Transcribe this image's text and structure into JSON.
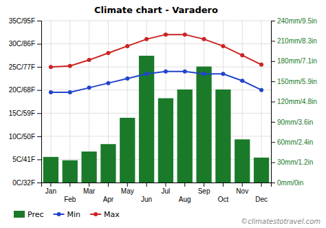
{
  "chart_data": {
    "type": "bar",
    "title": "Climate chart - Varadero",
    "categories": [
      "Jan",
      "Feb",
      "Mar",
      "Apr",
      "May",
      "Jun",
      "Jul",
      "Aug",
      "Sep",
      "Oct",
      "Nov",
      "Dec"
    ],
    "series": [
      {
        "name": "Prec",
        "type": "bar",
        "axis": "y2",
        "color": "#1a7a2a",
        "values": [
          38,
          33,
          46,
          57,
          96,
          188,
          125,
          138,
          172,
          138,
          64,
          37
        ]
      },
      {
        "name": "Min",
        "type": "line",
        "color": "#2244cc",
        "marker": "circle",
        "values": [
          19.5,
          19.5,
          20.5,
          21.5,
          22.5,
          23.5,
          24.0,
          24.0,
          23.5,
          23.5,
          22.0,
          20.0
        ]
      },
      {
        "name": "Max",
        "type": "line",
        "color": "#cc2222",
        "marker": "circle",
        "values": [
          25.0,
          25.2,
          26.5,
          28.0,
          29.5,
          31.0,
          32.0,
          32.0,
          31.0,
          29.5,
          27.5,
          25.5
        ]
      }
    ],
    "ylim": [
      0,
      35
    ],
    "yticks": [
      {
        "value": 0,
        "label": "0C/32F"
      },
      {
        "value": 5,
        "label": "5C/41F"
      },
      {
        "value": 10,
        "label": "10C/50F"
      },
      {
        "value": 15,
        "label": "15C/59F"
      },
      {
        "value": 20,
        "label": "20C/68F"
      },
      {
        "value": 25,
        "label": "25C/77F"
      },
      {
        "value": 30,
        "label": "30C/86F"
      },
      {
        "value": 35,
        "label": "35C/95F"
      }
    ],
    "y2lim": [
      0,
      240
    ],
    "y2ticks": [
      {
        "value": 0,
        "label": "0mm/0in"
      },
      {
        "value": 30,
        "label": "30mm/1.2in"
      },
      {
        "value": 60,
        "label": "60mm/2.4in"
      },
      {
        "value": 90,
        "label": "90mm/3.6in"
      },
      {
        "value": 120,
        "label": "120mm/4.8in"
      },
      {
        "value": 150,
        "label": "150mm/5.9in"
      },
      {
        "value": 180,
        "label": "180mm/7.1in"
      },
      {
        "value": 210,
        "label": "210mm/8.3in"
      },
      {
        "value": 240,
        "label": "240mm/9.5in"
      }
    ],
    "grid": true,
    "legend": "bottom",
    "annotations": [
      "©climatestotravel.com"
    ]
  }
}
